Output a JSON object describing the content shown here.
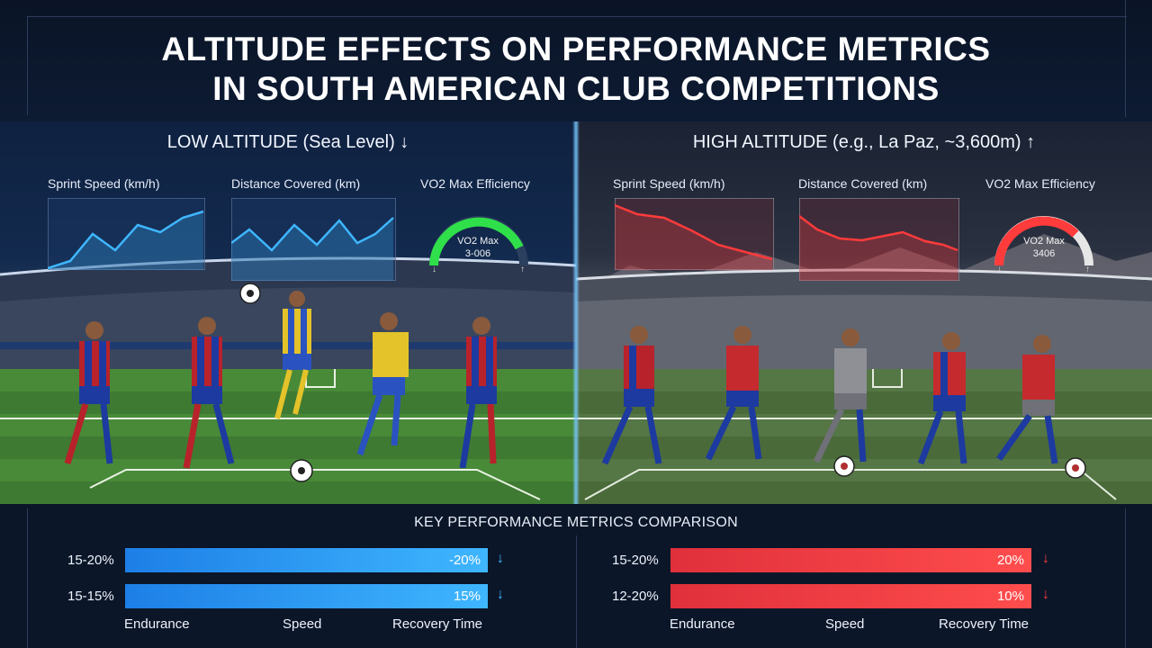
{
  "title": {
    "line1": "ALTITUDE EFFECTS ON PERFORMANCE METRICS",
    "line2": "IN SOUTH AMERICAN CLUB COMPETITIONS"
  },
  "left": {
    "heading": "LOW ALTITUDE (Sea Level) ↓",
    "charts": {
      "sprint": "Sprint Speed (km/h)",
      "distance": "Distance Covered (km)",
      "vo2": "VO2 Max Efficiency"
    },
    "gauge": {
      "line1": "VO2 Max",
      "line2": "3-006"
    },
    "accent": "#3fb6ff",
    "gauge_color": "#2fe04a"
  },
  "right": {
    "heading": "HIGH ALTITUDE (e.g., La Paz, ~3,600m) ↑",
    "charts": {
      "sprint": "Sprint Speed (km/h)",
      "distance": "Distance Covered (km)",
      "vo2": "VO2 Max Efficiency"
    },
    "gauge": {
      "line1": "VO2 Max",
      "line2": "3406"
    },
    "accent": "#ff3b3b"
  },
  "comparison": {
    "title": "KEY PERFORMANCE METRICS COMPARISON",
    "left_rows": [
      {
        "label": "15-20%",
        "value": "-20%",
        "arrow": "↓"
      },
      {
        "label": "15-15%",
        "value": "15%",
        "arrow": "↓"
      }
    ],
    "right_rows": [
      {
        "label": "15-20%",
        "value": "20%",
        "arrow": "↓"
      },
      {
        "label": "12-20%",
        "value": "10%",
        "arrow": "↓"
      }
    ],
    "left_axis": [
      "Endurance",
      "Speed",
      "Recovery Time"
    ],
    "right_axis": [
      "Endurance",
      "Speed",
      "Recovery Time"
    ]
  }
}
